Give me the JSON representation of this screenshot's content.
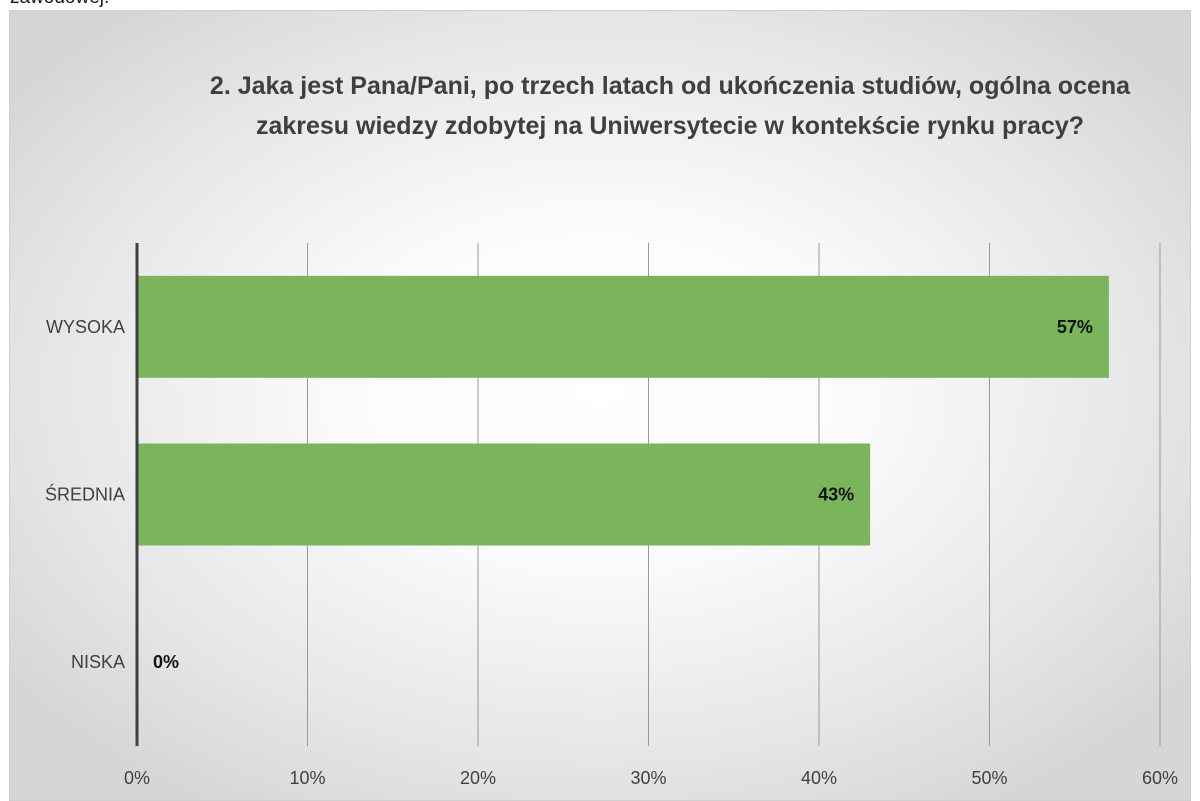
{
  "page": {
    "top_fragment": "zawodowej."
  },
  "chart_data": {
    "type": "bar",
    "orientation": "horizontal",
    "title": "2. Jaka jest Pana/Pani, po trzech latach od ukończenia studiów, ogólna ocena zakresu wiedzy zdobytej na Uniwersytecie w kontekście rynku pracy?",
    "categories": [
      "WYSOKA",
      "ŚREDNIA",
      "NISKA"
    ],
    "values": [
      57,
      43,
      0
    ],
    "data_labels": [
      "57%",
      "43%",
      "0%"
    ],
    "xlim": [
      0,
      60
    ],
    "x_ticks": [
      0,
      10,
      20,
      30,
      40,
      50,
      60
    ],
    "x_tick_labels": [
      "0%",
      "10%",
      "20%",
      "30%",
      "40%",
      "50%",
      "60%"
    ],
    "xlabel": "",
    "ylabel": "",
    "grid": true,
    "legend": "none",
    "bar_color": "#7ab55c",
    "axis_color": "#404040",
    "grid_color": "#999999"
  }
}
